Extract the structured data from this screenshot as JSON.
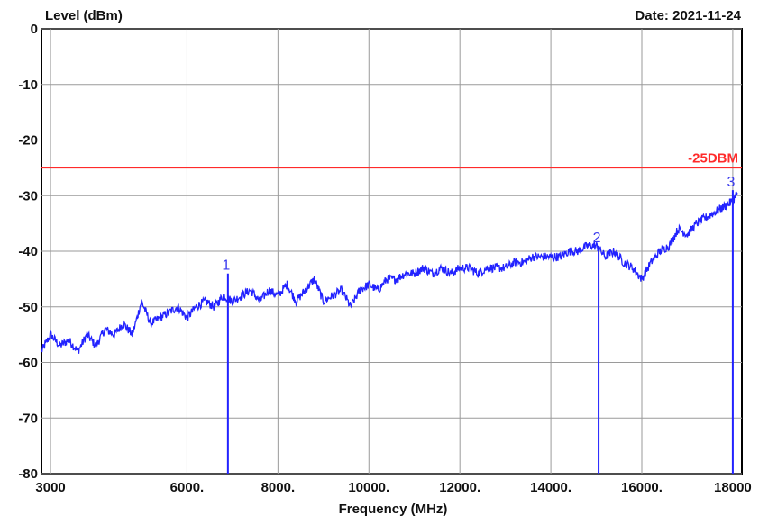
{
  "header": {
    "ylabel": "Level (dBm)",
    "date": "Date: 2021-11-24"
  },
  "chart_data": {
    "type": "line",
    "title": "",
    "xlabel": "Frequency (MHz)",
    "ylabel": "Level (dBm)",
    "xlim": [
      2800,
      18200
    ],
    "ylim": [
      -80,
      0
    ],
    "grid": true,
    "x_ticks": [
      3000,
      6000,
      8000,
      10000,
      12000,
      14000,
      16000,
      18000
    ],
    "x_tick_labels": [
      "3000",
      "6000.",
      "8000.",
      "10000.",
      "12000.",
      "14000.",
      "16000.",
      "18000"
    ],
    "y_ticks": [
      0,
      -10,
      -20,
      -30,
      -40,
      -50,
      -60,
      -70,
      -80
    ],
    "y_tick_labels": [
      "0",
      "-10",
      "-20",
      "-30",
      "-40",
      "-50",
      "-60",
      "-70",
      "-80"
    ],
    "limit_line": {
      "label": "-25DBM",
      "value": -25,
      "color": "#ff2a2a"
    },
    "series": [
      {
        "color": "#2222ff",
        "x": [
          2800,
          3000,
          3200,
          3400,
          3600,
          3800,
          4000,
          4200,
          4400,
          4600,
          4800,
          5000,
          5200,
          5400,
          5600,
          5800,
          6000,
          6200,
          6400,
          6600,
          6800,
          7000,
          7200,
          7400,
          7600,
          7800,
          8000,
          8200,
          8400,
          8600,
          8800,
          9000,
          9200,
          9400,
          9600,
          9800,
          10000,
          10200,
          10400,
          10600,
          10800,
          11000,
          11200,
          11400,
          11600,
          11800,
          12000,
          12200,
          12400,
          12600,
          12800,
          13000,
          13200,
          13400,
          13600,
          13800,
          14000,
          14200,
          14400,
          14600,
          14800,
          15000,
          15200,
          15400,
          15600,
          15800,
          16000,
          16200,
          16400,
          16600,
          16800,
          17000,
          17200,
          17400,
          17600,
          17800,
          18000,
          18100
        ],
        "y": [
          -58,
          -55,
          -57,
          -56,
          -58,
          -55,
          -57,
          -54,
          -55,
          -53,
          -55,
          -49,
          -53,
          -52,
          -51,
          -50,
          -52,
          -50,
          -49,
          -50,
          -48,
          -49,
          -48,
          -47,
          -49,
          -47,
          -48,
          -46,
          -49,
          -47,
          -45,
          -49,
          -48,
          -47,
          -50,
          -47,
          -46,
          -47,
          -45,
          -45,
          -44,
          -44,
          -43,
          -44,
          -43,
          -44,
          -43,
          -43,
          -44,
          -43,
          -43,
          -43,
          -42,
          -42,
          -41,
          -41,
          -41,
          -41,
          -40,
          -40,
          -39,
          -39,
          -41,
          -40,
          -42,
          -43,
          -45,
          -42,
          -40,
          -39,
          -36,
          -37,
          -35,
          -34,
          -33,
          -32,
          -31,
          -29.5
        ]
      }
    ],
    "markers": [
      {
        "label": "1",
        "x": 6900,
        "y": -44
      },
      {
        "label": "2",
        "x": 15050,
        "y": -39
      },
      {
        "label": "3",
        "x": 18000,
        "y": -29
      }
    ]
  }
}
